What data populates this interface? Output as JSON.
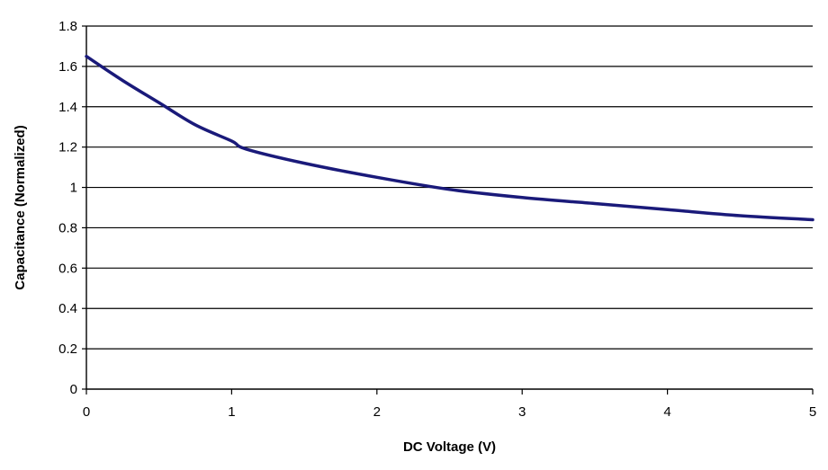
{
  "chart_data": {
    "type": "line",
    "title": "",
    "xlabel": "DC Voltage (V)",
    "ylabel": "Capacitance (Normalized)",
    "xlim": [
      0,
      5
    ],
    "ylim": [
      0,
      1.8
    ],
    "x_ticks": [
      0,
      1,
      2,
      3,
      4,
      5
    ],
    "y_ticks": [
      0,
      0.2,
      0.4,
      0.6,
      0.8,
      1,
      1.2,
      1.4,
      1.6,
      1.8
    ],
    "x_tick_labels": [
      "0",
      "1",
      "2",
      "3",
      "4",
      "5"
    ],
    "y_tick_labels": [
      "0",
      "0.2",
      "0.4",
      "0.6",
      "0.8",
      "1",
      "1.2",
      "1.4",
      "1.6",
      "1.8"
    ],
    "grid": "horizontal",
    "series": [
      {
        "color": "#1a1a7a",
        "x": [
          0,
          0.25,
          0.5,
          0.75,
          1.0,
          1.1,
          1.5,
          2.0,
          2.5,
          3.0,
          3.5,
          4.0,
          4.5,
          5.0
        ],
        "y": [
          1.65,
          1.53,
          1.42,
          1.31,
          1.23,
          1.19,
          1.12,
          1.05,
          0.99,
          0.95,
          0.92,
          0.89,
          0.86,
          0.84
        ]
      }
    ]
  }
}
